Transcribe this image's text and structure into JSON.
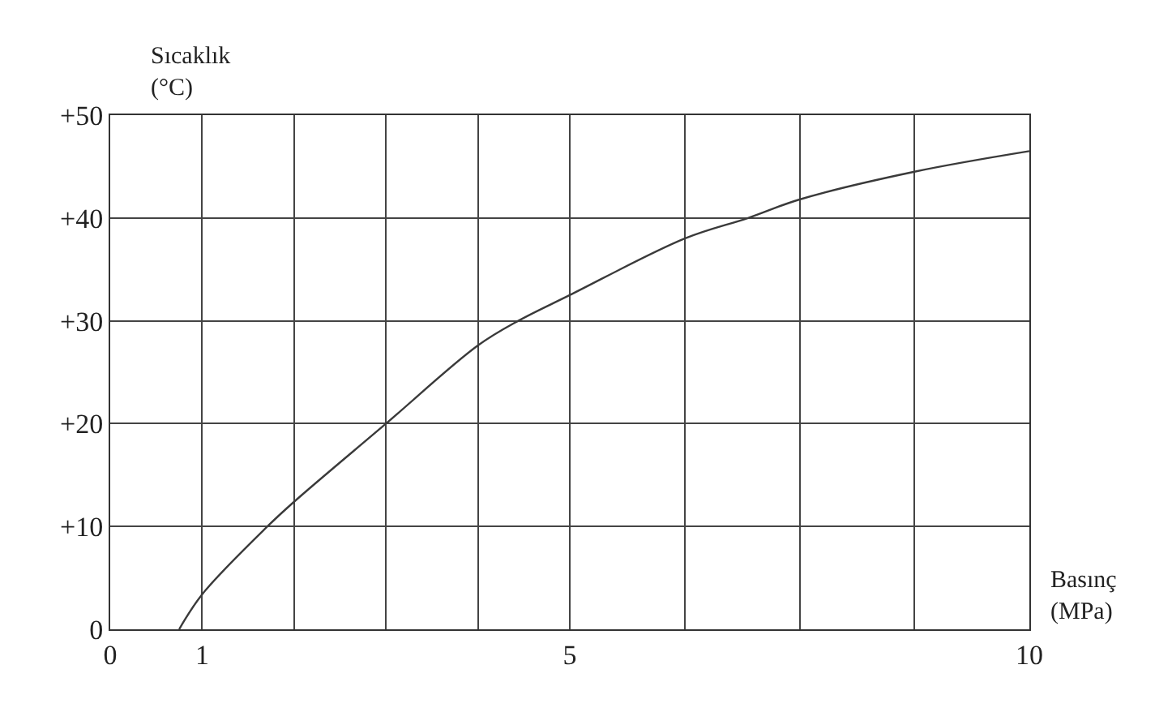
{
  "chart_data": {
    "type": "line",
    "xlabel": "Basınç\n(MPa)",
    "ylabel": "Sıcaklık\n(°C)",
    "x": [
      0.75,
      1,
      1.71,
      2,
      3,
      4,
      4.44,
      5,
      6.25,
      6.94,
      7.5,
      8.75,
      10
    ],
    "series": [
      {
        "color": "#3a3a3a",
        "values": [
          0,
          3.4,
          10,
          12.4,
          20,
          27.6,
          30,
          32.5,
          38.0,
          40,
          41.8,
          44.5,
          46.5
        ]
      }
    ],
    "xlim": [
      0,
      10
    ],
    "ylim": [
      0,
      50
    ],
    "xticks": [
      0,
      1,
      {
        "value": 2,
        "label": null
      },
      {
        "value": 3,
        "label": null
      },
      {
        "value": 4,
        "label": null
      },
      5,
      {
        "value": 6.25,
        "label": null
      },
      {
        "value": 7.5,
        "label": null
      },
      {
        "value": 8.75,
        "label": null
      },
      10
    ],
    "yticks": [
      0,
      {
        "value": 10,
        "label": "+10"
      },
      {
        "value": 20,
        "label": "+20"
      },
      {
        "value": 30,
        "label": "+30"
      },
      {
        "value": 40,
        "label": "+40"
      },
      {
        "value": 50,
        "label": "+50"
      }
    ],
    "grid": true,
    "marker": "none",
    "line_style": "solid"
  }
}
